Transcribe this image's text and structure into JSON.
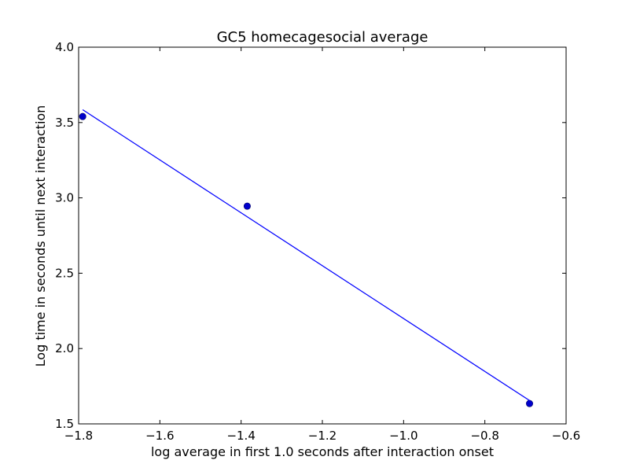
{
  "chart_data": {
    "type": "scatter",
    "title": "GC5 homecagesocial average",
    "xlabel": "log average in first 1.0 seconds after interaction onset",
    "ylabel": "Log time in seconds until next interaction",
    "xlim": [
      -1.8,
      -0.6
    ],
    "ylim": [
      1.5,
      4.0
    ],
    "xticks": [
      -1.8,
      -1.6,
      -1.4,
      -1.2,
      -1.0,
      -0.8,
      -0.6
    ],
    "yticks": [
      1.5,
      2.0,
      2.5,
      3.0,
      3.5,
      4.0
    ],
    "xtick_labels": [
      "−1.8",
      "−1.6",
      "−1.4",
      "−1.2",
      "−1.0",
      "−0.8",
      "−0.6"
    ],
    "ytick_labels": [
      "1.5",
      "2.0",
      "2.5",
      "3.0",
      "3.5",
      "4.0"
    ],
    "grid": false,
    "series": [
      {
        "kind": "points",
        "color": "#0000cc",
        "x": [
          -1.79,
          -1.385,
          -0.69
        ],
        "y": [
          3.54,
          2.945,
          1.635
        ]
      },
      {
        "kind": "line",
        "color": "#0000ff",
        "x": [
          -1.79,
          -0.69
        ],
        "y": [
          3.585,
          1.655
        ]
      }
    ]
  }
}
